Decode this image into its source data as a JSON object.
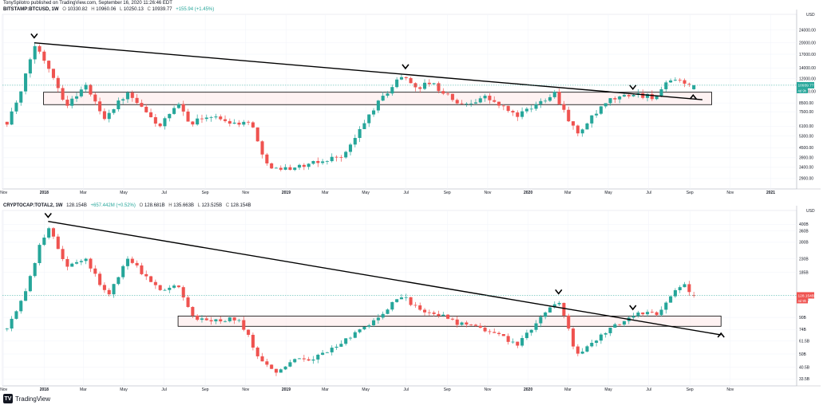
{
  "header": {
    "publisher_line": "TonySpilotro published on TradingView.com, September 16, 2020 11:26:46 EDT"
  },
  "footer": {
    "brand": "TradingView",
    "logo_glyph": "TV"
  },
  "colors": {
    "up": "#26a69a",
    "down": "#ef5350",
    "trendline": "#000000",
    "box_fill": "#fde8e8"
  },
  "chart_data": [
    {
      "type": "candlestick",
      "symbol": "BITSTAMP:BTCUSD, 1W",
      "readout": {
        "open_label": "O",
        "open": "10330.82",
        "high_label": "H",
        "high": "10960.06",
        "low_label": "L",
        "low": "10250.13",
        "close_label": "C",
        "close": "10939.77",
        "change": "+155.94 (+1.45%)"
      },
      "currency": "USD",
      "log_scale": true,
      "y_range": [
        2500,
        30000
      ],
      "x_range": [
        "2017-10-30",
        "2021-01-10"
      ],
      "y_ticks": [
        "24000.00",
        "20000.00",
        "17000.00",
        "14000.00",
        "12000.00",
        "10000.00",
        "8500.00",
        "7500.00",
        "6100.00",
        "5300.00",
        "4500.00",
        "3900.00",
        "3400.00",
        "2900.00"
      ],
      "price_label": "10939.77",
      "countdown_label": "4d 9h",
      "x_ticks": [
        "Nov",
        "2018",
        "Mar",
        "May",
        "Jul",
        "Sep",
        "Nov",
        "2019",
        "Mar",
        "May",
        "Jul",
        "Sep",
        "Nov",
        "2020",
        "Mar",
        "May",
        "Jul",
        "Sep",
        "Nov",
        "2021"
      ],
      "trendline": [
        [
          "2017-12-17",
          20000
        ],
        [
          "2020-09-20",
          8900
        ]
      ],
      "range_box": {
        "from": "2017-12-31",
        "to": "2020-10-04",
        "top": 9900,
        "bottom": 8300
      },
      "markers": [
        {
          "date": "2017-12-17",
          "price": 22000,
          "type": "top"
        },
        {
          "date": "2019-06-30",
          "price": 14200,
          "type": "top"
        },
        {
          "date": "2020-06-07",
          "price": 10600,
          "type": "top"
        },
        {
          "date": "2020-09-06",
          "price": 9300,
          "type": "bottom"
        }
      ],
      "anchors": [
        [
          "2017-11-06",
          6500
        ],
        [
          "2017-11-27",
          9800
        ],
        [
          "2017-12-17",
          19500
        ],
        [
          "2018-01-07",
          14500
        ],
        [
          "2018-02-04",
          8200
        ],
        [
          "2018-03-04",
          11000
        ],
        [
          "2018-04-01",
          6900
        ],
        [
          "2018-05-06",
          9700
        ],
        [
          "2018-06-24",
          6100
        ],
        [
          "2018-07-22",
          8200
        ],
        [
          "2018-08-12",
          6300
        ],
        [
          "2018-09-02",
          7100
        ],
        [
          "2018-10-14",
          6450
        ],
        [
          "2018-11-11",
          6400
        ],
        [
          "2018-11-25",
          4000
        ],
        [
          "2018-12-16",
          3300
        ],
        [
          "2019-02-03",
          3500
        ],
        [
          "2019-03-31",
          4100
        ],
        [
          "2019-05-12",
          7800
        ],
        [
          "2019-06-23",
          12500
        ],
        [
          "2019-07-21",
          10500
        ],
        [
          "2019-08-04",
          11500
        ],
        [
          "2019-09-22",
          8200
        ],
        [
          "2019-10-27",
          9300
        ],
        [
          "2019-12-15",
          7100
        ],
        [
          "2020-01-05",
          7800
        ],
        [
          "2020-02-09",
          10000
        ],
        [
          "2020-03-15",
          5400
        ],
        [
          "2020-04-05",
          6800
        ],
        [
          "2020-05-03",
          8800
        ],
        [
          "2020-06-07",
          9700
        ],
        [
          "2020-07-12",
          9250
        ],
        [
          "2020-07-26",
          10900
        ],
        [
          "2020-08-16",
          12100
        ],
        [
          "2020-09-06",
          10300
        ],
        [
          "2020-09-13",
          10900
        ]
      ]
    },
    {
      "type": "candlestick",
      "symbol": "CRYPTOCAP:TOTAL2, 1W",
      "readout": {
        "close_head": "128.154B",
        "change": "+657.442M (+0.52%)",
        "open_label": "O",
        "open": "128.681B",
        "high_label": "H",
        "high": "135.663B",
        "low_label": "L",
        "low": "123.525B",
        "close_label": "C",
        "close": "128.154B"
      },
      "currency": "USD",
      "log_scale": true,
      "y_range": [
        30,
        500
      ],
      "x_range": [
        "2017-10-30",
        "2021-01-10"
      ],
      "y_ticks": [
        "400B",
        "360B",
        "300B",
        "230B",
        "185B",
        "120B",
        "90B",
        "74B",
        "61.5B",
        "50B",
        "40.5B",
        "33.5B"
      ],
      "price_label": "128.154B",
      "countdown_label": "4d 9h",
      "x_ticks": [
        "Nov",
        "2018",
        "Mar",
        "May",
        "Jul",
        "Sep",
        "Nov",
        "2019",
        "Mar",
        "May",
        "Jul",
        "Sep",
        "Nov",
        "2020",
        "Mar",
        "May",
        "Jul",
        "Sep",
        "Nov"
      ],
      "trendline": [
        [
          "2018-01-07",
          420
        ],
        [
          "2020-10-18",
          68
        ]
      ],
      "range_box": {
        "from": "2018-07-22",
        "to": "2020-10-18",
        "top": 92,
        "bottom": 78
      },
      "markers": [
        {
          "date": "2018-01-07",
          "price": 460,
          "type": "top"
        },
        {
          "date": "2020-02-16",
          "price": 135,
          "type": "top"
        },
        {
          "date": "2020-06-07",
          "price": 105,
          "type": "top"
        },
        {
          "date": "2020-10-18",
          "price": 68,
          "type": "bottom"
        }
      ],
      "anchors": [
        [
          "2017-11-06",
          75
        ],
        [
          "2017-12-03",
          130
        ],
        [
          "2017-12-24",
          270
        ],
        [
          "2018-01-07",
          390
        ],
        [
          "2018-02-04",
          200
        ],
        [
          "2018-03-04",
          230
        ],
        [
          "2018-04-08",
          125
        ],
        [
          "2018-05-06",
          235
        ],
        [
          "2018-06-24",
          140
        ],
        [
          "2018-07-22",
          155
        ],
        [
          "2018-08-12",
          90
        ],
        [
          "2018-09-09",
          85
        ],
        [
          "2018-10-21",
          90
        ],
        [
          "2018-11-18",
          50
        ],
        [
          "2018-12-16",
          38
        ],
        [
          "2019-01-13",
          45
        ],
        [
          "2019-02-17",
          48
        ],
        [
          "2019-04-07",
          65
        ],
        [
          "2019-05-26",
          95
        ],
        [
          "2019-06-23",
          130
        ],
        [
          "2019-07-21",
          100
        ],
        [
          "2019-08-18",
          95
        ],
        [
          "2019-09-29",
          78
        ],
        [
          "2019-11-10",
          72
        ],
        [
          "2019-12-15",
          58
        ],
        [
          "2020-01-12",
          80
        ],
        [
          "2020-02-16",
          120
        ],
        [
          "2020-03-15",
          48
        ],
        [
          "2020-04-12",
          62
        ],
        [
          "2020-05-10",
          78
        ],
        [
          "2020-06-14",
          95
        ],
        [
          "2020-07-12",
          95
        ],
        [
          "2020-08-02",
          125
        ],
        [
          "2020-08-23",
          150
        ],
        [
          "2020-09-06",
          125
        ],
        [
          "2020-09-13",
          128
        ]
      ]
    }
  ]
}
